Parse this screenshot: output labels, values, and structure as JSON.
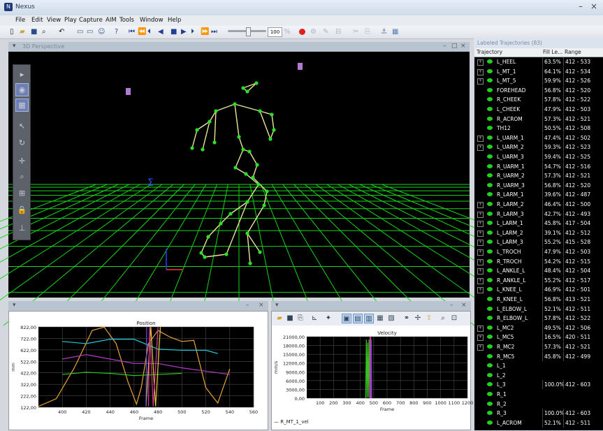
{
  "app": {
    "title": "Nexus",
    "window_controls": {
      "minimize": "–",
      "close": "×"
    }
  },
  "menu": [
    "File",
    "Edit",
    "View",
    "Play",
    "Capture",
    "AIM",
    "Tools",
    "Window",
    "Help"
  ],
  "toolbar": {
    "speed": "100",
    "accent_record": "#e0201c"
  },
  "view3d": {
    "title": "3D Perspective"
  },
  "trajectory_panel": {
    "title": "Labeled Trajectories (83)",
    "columns": [
      "Trajectory",
      "Fill Le...",
      "Range"
    ],
    "rows": [
      {
        "label": "L_HEEL",
        "fill": "63.5%",
        "range": "412 - 533",
        "expandable": true
      },
      {
        "label": "L_MT_1",
        "fill": "64.1%",
        "range": "412 - 534",
        "expandable": true
      },
      {
        "label": "L_MT_5",
        "fill": "59.9%",
        "range": "412 - 526",
        "expandable": true
      },
      {
        "label": "FOREHEAD",
        "fill": "56.8%",
        "range": "412 - 520",
        "expandable": false
      },
      {
        "label": "R_CHEEK",
        "fill": "57.8%",
        "range": "412 - 522",
        "expandable": false
      },
      {
        "label": "L_CHEEK",
        "fill": "47.9%",
        "range": "412 - 503",
        "expandable": false
      },
      {
        "label": "R_ACROM",
        "fill": "57.3%",
        "range": "412 - 521",
        "expandable": false
      },
      {
        "label": "TH12",
        "fill": "50.5%",
        "range": "412 - 508",
        "expandable": false
      },
      {
        "label": "L_UARM_1",
        "fill": "47.4%",
        "range": "412 - 502",
        "expandable": true
      },
      {
        "label": "L_UARM_2",
        "fill": "59.3%",
        "range": "412 - 523",
        "expandable": true
      },
      {
        "label": "L_UARM_3",
        "fill": "59.4%",
        "range": "412 - 525",
        "expandable": false
      },
      {
        "label": "R_UARM_1",
        "fill": "54.7%",
        "range": "412 - 516",
        "expandable": false
      },
      {
        "label": "R_UARM_2",
        "fill": "57.3%",
        "range": "412 - 521",
        "expandable": false
      },
      {
        "label": "R_UARM_3",
        "fill": "56.8%",
        "range": "412 - 520",
        "expandable": false
      },
      {
        "label": "R_LARM_1",
        "fill": "39.6%",
        "range": "412 - 487",
        "expandable": false
      },
      {
        "label": "R_LARM_2",
        "fill": "46.4%",
        "range": "412 - 500",
        "expandable": true
      },
      {
        "label": "R_LARM_3",
        "fill": "42.7%",
        "range": "412 - 493",
        "expandable": true
      },
      {
        "label": "L_LARM_1",
        "fill": "45.8%",
        "range": "417 - 504",
        "expandable": true
      },
      {
        "label": "L_LARM_2",
        "fill": "39.1%",
        "range": "412 - 512",
        "expandable": true
      },
      {
        "label": "L_LARM_3",
        "fill": "55.2%",
        "range": "415 - 528",
        "expandable": true
      },
      {
        "label": "L_TROCH",
        "fill": "47.9%",
        "range": "412 - 503",
        "expandable": true
      },
      {
        "label": "R_TROCH",
        "fill": "54.2%",
        "range": "412 - 515",
        "expandable": true
      },
      {
        "label": "L_ANKLE_L",
        "fill": "48.4%",
        "range": "412 - 504",
        "expandable": true
      },
      {
        "label": "R_ANKLE_L",
        "fill": "55.2%",
        "range": "412 - 517",
        "expandable": true
      },
      {
        "label": "L_KNEE_L",
        "fill": "46.9%",
        "range": "412 - 501",
        "expandable": true
      },
      {
        "label": "R_KNEE_L",
        "fill": "56.8%",
        "range": "413 - 521",
        "expandable": false
      },
      {
        "label": "L_ELBOW_L",
        "fill": "52.1%",
        "range": "412 - 511",
        "expandable": false
      },
      {
        "label": "R_ELBOW_L",
        "fill": "57.8%",
        "range": "412 - 522",
        "expandable": false
      },
      {
        "label": "L_MC2",
        "fill": "49.5%",
        "range": "412 - 506",
        "expandable": true
      },
      {
        "label": "L_MC5",
        "fill": "16.5%",
        "range": "420 - 511",
        "expandable": true
      },
      {
        "label": "R_MC2",
        "fill": "57.3%",
        "range": "412 - 521",
        "expandable": true
      },
      {
        "label": "R_MC5",
        "fill": "45.8%",
        "range": "412 - 499",
        "expandable": false
      },
      {
        "label": "L_1",
        "fill": "",
        "range": "",
        "expandable": false
      },
      {
        "label": "L_2",
        "fill": "",
        "range": "",
        "expandable": false
      },
      {
        "label": "L_3",
        "fill": "100.0%",
        "range": "412 - 603",
        "expandable": false
      },
      {
        "label": "R_1",
        "fill": "",
        "range": "",
        "expandable": false
      },
      {
        "label": "R_2",
        "fill": "",
        "range": "",
        "expandable": false
      },
      {
        "label": "R_3",
        "fill": "100.0%",
        "range": "412 - 603",
        "expandable": false
      },
      {
        "label": "L_ACROM",
        "fill": "52.1%",
        "range": "412 - 511",
        "expandable": false
      }
    ]
  },
  "plot_position": {
    "title_bar": "",
    "chart_title": "Position"
  },
  "plot_velocity": {
    "title_bar": "",
    "legend": "— R_MT_1_vel"
  },
  "chart_data": [
    {
      "type": "line",
      "title": "Position",
      "xlabel": "Frame",
      "ylabel": "mm",
      "xlim": [
        380,
        560
      ],
      "ylim": [
        122,
        852
      ],
      "x_ticks": [
        400,
        420,
        440,
        460,
        480,
        500,
        520,
        540,
        560
      ],
      "y_ticks": [
        "822,00",
        "722,00",
        "622,00",
        "522,00",
        "422,00",
        "322,00",
        "222,00",
        "122,00"
      ],
      "series": [
        {
          "color": "#e8a33a",
          "x": [
            380,
            395,
            410,
            425,
            435,
            445,
            455,
            462,
            466,
            472,
            480,
            490,
            500,
            510,
            520,
            530,
            540
          ],
          "y": [
            130,
            200,
            480,
            820,
            850,
            700,
            350,
            150,
            300,
            700,
            820,
            760,
            720,
            730,
            300,
            160,
            470
          ]
        },
        {
          "color": "#22c8d8",
          "x": [
            400,
            420,
            440,
            460,
            480,
            500,
            520,
            530
          ],
          "y": [
            720,
            700,
            740,
            740,
            650,
            640,
            640,
            610
          ]
        },
        {
          "color": "#b53bc8",
          "x": [
            400,
            420,
            440,
            460,
            480,
            500,
            520,
            540
          ],
          "y": [
            560,
            600,
            560,
            520,
            520,
            480,
            450,
            420
          ]
        },
        {
          "color": "#2fc41f",
          "x": [
            400,
            420,
            440,
            460,
            480,
            500
          ],
          "y": [
            420,
            440,
            430,
            410,
            420,
            430
          ]
        },
        {
          "color": "#e8c83a",
          "x": [
            470,
            474,
            478,
            482
          ],
          "y": [
            130,
            850,
            130,
            850
          ]
        },
        {
          "color": "#d43b8f",
          "x": [
            472,
            473,
            476,
            480
          ],
          "y": [
            130,
            850,
            130,
            850
          ]
        },
        {
          "color": "#6a4ae8",
          "x": [
            470,
            470.5
          ],
          "y": [
            130,
            850
          ]
        }
      ]
    },
    {
      "type": "line",
      "title": "Velocity",
      "xlabel": "Frame",
      "ylabel": "mm/s",
      "xlim": [
        0,
        1200
      ],
      "ylim": [
        0,
        21000
      ],
      "x_ticks": [
        100,
        200,
        300,
        400,
        500,
        600,
        700,
        800,
        900,
        1000,
        1100,
        1200
      ],
      "y_ticks": [
        "21000,00",
        "18000,00",
        "15000,00",
        "12000,00",
        "9000,00",
        "6000,00",
        "3000,00",
        "0,00"
      ],
      "series": [
        {
          "name": "R_MT_1_vel",
          "color": "#2fc41f",
          "x": [
            440,
            445,
            450,
            455,
            460,
            465,
            470
          ],
          "y": [
            0,
            20000,
            200,
            19000,
            300,
            20000,
            0
          ]
        },
        {
          "color": "#d43b8f",
          "x": [
            470,
            472,
            474,
            476,
            478,
            480,
            485
          ],
          "y": [
            0,
            21000,
            100,
            21000,
            0,
            20000,
            0
          ]
        },
        {
          "color": "#6a4ae8",
          "x": [
            480,
            482,
            484
          ],
          "y": [
            0,
            20000,
            0
          ]
        }
      ]
    }
  ]
}
